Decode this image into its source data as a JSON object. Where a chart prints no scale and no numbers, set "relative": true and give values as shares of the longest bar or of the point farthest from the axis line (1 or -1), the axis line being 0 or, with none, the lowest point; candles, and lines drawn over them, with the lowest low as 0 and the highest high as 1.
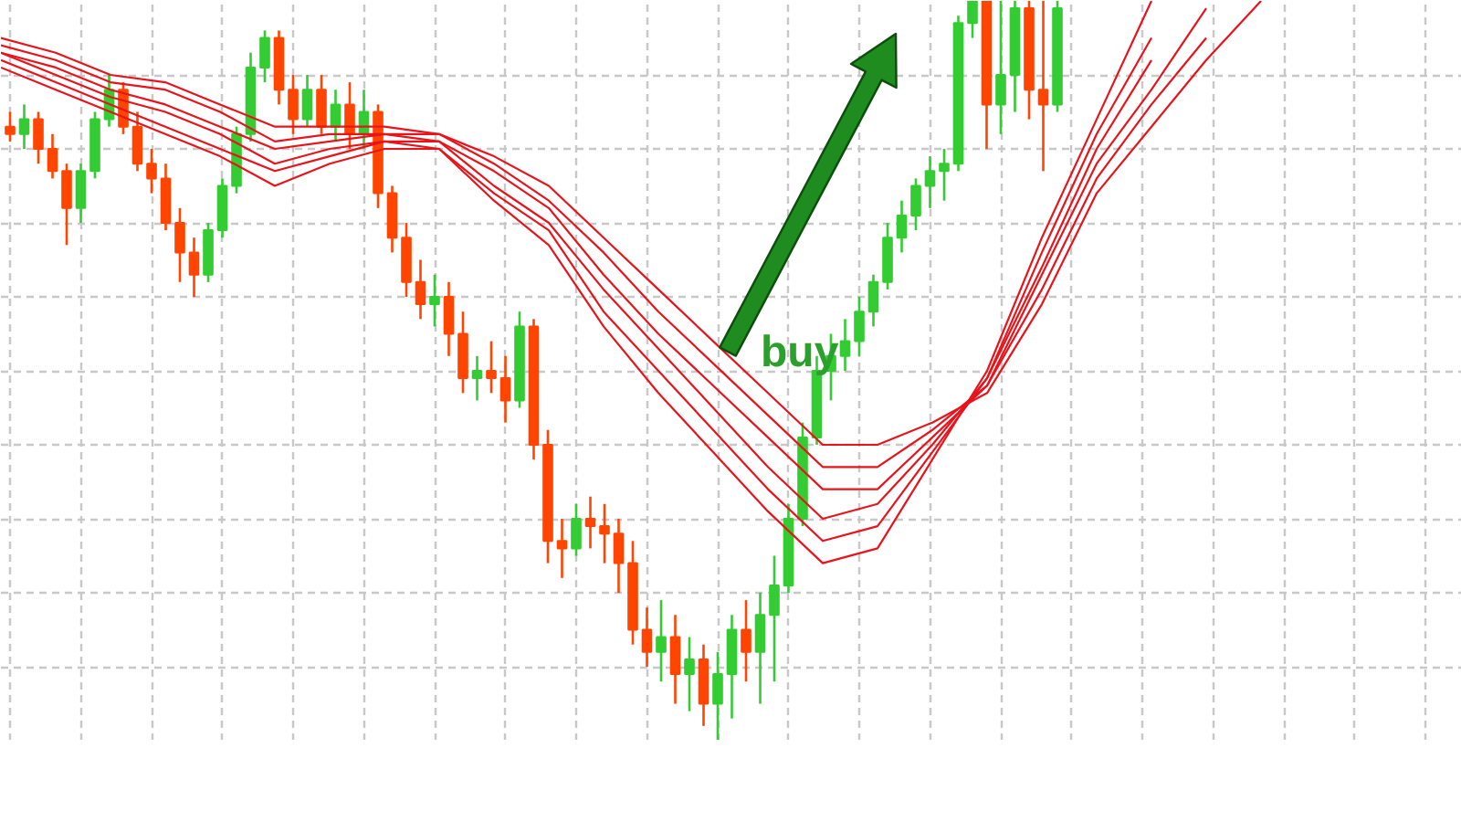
{
  "chart_data": [
    {
      "type": "candlestick",
      "relative": true,
      "tick_labels": false,
      "grid": true,
      "annotations": [
        "buy"
      ],
      "categories": [
        null,
        null,
        null,
        null,
        null,
        null,
        null,
        null,
        null,
        null,
        null,
        null,
        null,
        null,
        null,
        null,
        null,
        null,
        null,
        null,
        null,
        null,
        null,
        null,
        null,
        null,
        null,
        null,
        null,
        null,
        null,
        null,
        null,
        null,
        null,
        null,
        null,
        null,
        null,
        null,
        null,
        null,
        null,
        null,
        null,
        null,
        null,
        null,
        null,
        null,
        null,
        null,
        null,
        null,
        null,
        null,
        null,
        null,
        null,
        null,
        null,
        null,
        null,
        null,
        null,
        null,
        null,
        null,
        null,
        null,
        null,
        null,
        null,
        null,
        null
      ],
      "ohlc": [
        [
          0.83,
          0.85,
          0.81,
          0.82
        ],
        [
          0.82,
          0.86,
          0.8,
          0.84
        ],
        [
          0.84,
          0.85,
          0.78,
          0.8
        ],
        [
          0.8,
          0.82,
          0.76,
          0.77
        ],
        [
          0.77,
          0.78,
          0.67,
          0.72
        ],
        [
          0.72,
          0.78,
          0.7,
          0.77
        ],
        [
          0.77,
          0.85,
          0.76,
          0.84
        ],
        [
          0.84,
          0.9,
          0.83,
          0.88
        ],
        [
          0.88,
          0.89,
          0.82,
          0.83
        ],
        [
          0.83,
          0.85,
          0.77,
          0.78
        ],
        [
          0.78,
          0.8,
          0.74,
          0.76
        ],
        [
          0.76,
          0.78,
          0.69,
          0.7
        ],
        [
          0.7,
          0.72,
          0.62,
          0.66
        ],
        [
          0.66,
          0.68,
          0.6,
          0.63
        ],
        [
          0.63,
          0.7,
          0.62,
          0.69
        ],
        [
          0.69,
          0.76,
          0.68,
          0.75
        ],
        [
          0.75,
          0.83,
          0.74,
          0.82
        ],
        [
          0.82,
          0.93,
          0.81,
          0.91
        ],
        [
          0.91,
          0.96,
          0.89,
          0.95
        ],
        [
          0.95,
          0.96,
          0.86,
          0.88
        ],
        [
          0.88,
          0.9,
          0.82,
          0.84
        ],
        [
          0.84,
          0.9,
          0.83,
          0.88
        ],
        [
          0.88,
          0.9,
          0.82,
          0.83
        ],
        [
          0.83,
          0.88,
          0.81,
          0.86
        ],
        [
          0.86,
          0.89,
          0.8,
          0.82
        ],
        [
          0.82,
          0.88,
          0.8,
          0.85
        ],
        [
          0.85,
          0.86,
          0.72,
          0.74
        ],
        [
          0.74,
          0.75,
          0.66,
          0.68
        ],
        [
          0.68,
          0.7,
          0.6,
          0.62
        ],
        [
          0.62,
          0.65,
          0.57,
          0.59
        ],
        [
          0.59,
          0.63,
          0.56,
          0.6
        ],
        [
          0.6,
          0.62,
          0.52,
          0.55
        ],
        [
          0.55,
          0.58,
          0.47,
          0.49
        ],
        [
          0.49,
          0.52,
          0.46,
          0.5
        ],
        [
          0.5,
          0.54,
          0.47,
          0.49
        ],
        [
          0.49,
          0.52,
          0.43,
          0.46
        ],
        [
          0.46,
          0.58,
          0.45,
          0.56
        ],
        [
          0.56,
          0.57,
          0.38,
          0.4
        ],
        [
          0.4,
          0.42,
          0.24,
          0.27
        ],
        [
          0.27,
          0.3,
          0.22,
          0.26
        ],
        [
          0.26,
          0.32,
          0.25,
          0.3
        ],
        [
          0.3,
          0.33,
          0.26,
          0.29
        ],
        [
          0.29,
          0.32,
          0.24,
          0.28
        ],
        [
          0.28,
          0.3,
          0.2,
          0.24
        ],
        [
          0.24,
          0.27,
          0.13,
          0.15
        ],
        [
          0.15,
          0.18,
          0.1,
          0.12
        ],
        [
          0.12,
          0.19,
          0.08,
          0.14
        ],
        [
          0.14,
          0.17,
          0.05,
          0.09
        ],
        [
          0.09,
          0.14,
          0.04,
          0.11
        ],
        [
          0.11,
          0.13,
          0.02,
          0.05
        ],
        [
          0.05,
          0.12,
          0.0,
          0.09
        ],
        [
          0.09,
          0.17,
          0.03,
          0.15
        ],
        [
          0.15,
          0.19,
          0.08,
          0.12
        ],
        [
          0.12,
          0.2,
          0.05,
          0.17
        ],
        [
          0.17,
          0.25,
          0.08,
          0.21
        ],
        [
          0.21,
          0.32,
          0.2,
          0.3
        ],
        [
          0.3,
          0.43,
          0.29,
          0.41
        ],
        [
          0.41,
          0.52,
          0.4,
          0.5
        ],
        [
          0.5,
          0.55,
          0.46,
          0.52
        ],
        [
          0.52,
          0.57,
          0.5,
          0.54
        ],
        [
          0.54,
          0.6,
          0.52,
          0.58
        ],
        [
          0.58,
          0.63,
          0.56,
          0.62
        ],
        [
          0.62,
          0.7,
          0.61,
          0.68
        ],
        [
          0.68,
          0.73,
          0.66,
          0.71
        ],
        [
          0.71,
          0.76,
          0.69,
          0.75
        ],
        [
          0.75,
          0.79,
          0.72,
          0.77
        ],
        [
          0.77,
          0.8,
          0.73,
          0.78
        ],
        [
          0.78,
          0.98,
          0.77,
          0.97
        ],
        [
          0.97,
          1.0,
          0.95,
          1.0
        ],
        [
          1.0,
          1.0,
          0.8,
          0.86
        ],
        [
          0.86,
          1.0,
          0.82,
          0.9
        ],
        [
          0.9,
          1.0,
          0.85,
          0.99
        ],
        [
          0.99,
          1.0,
          0.84,
          0.88
        ],
        [
          0.88,
          1.0,
          0.77,
          0.86
        ],
        [
          0.86,
          1.0,
          0.85,
          0.99
        ]
      ],
      "colors": [
        "#ff4500",
        "#33cc33",
        "#ff4500",
        "#ff4500",
        "#ff4500",
        "#33cc33",
        "#33cc33",
        "#33cc33",
        "#ff4500",
        "#ff4500",
        "#ff4500",
        "#ff4500",
        "#ff4500",
        "#ff4500",
        "#33cc33",
        "#33cc33",
        "#33cc33",
        "#33cc33",
        "#33cc33",
        "#ff4500",
        "#ff4500",
        "#33cc33",
        "#ff4500",
        "#33cc33",
        "#ff4500",
        "#33cc33",
        "#ff4500",
        "#ff4500",
        "#ff4500",
        "#ff4500",
        "#33cc33",
        "#ff4500",
        "#ff4500",
        "#33cc33",
        "#ff4500",
        "#ff4500",
        "#33cc33",
        "#ff4500",
        "#ff4500",
        "#ff4500",
        "#33cc33",
        "#ff4500",
        "#ff4500",
        "#ff4500",
        "#ff4500",
        "#ff4500",
        "#33cc33",
        "#ff4500",
        "#33cc33",
        "#ff4500",
        "#33cc33",
        "#33cc33",
        "#ff4500",
        "#33cc33",
        "#33cc33",
        "#33cc33",
        "#33cc33",
        "#33cc33",
        "#33cc33",
        "#33cc33",
        "#33cc33",
        "#33cc33",
        "#33cc33",
        "#33cc33",
        "#33cc33",
        "#33cc33",
        "#33cc33",
        "#33cc33",
        "#33cc33",
        "#ff4500",
        "#33cc33",
        "#33cc33",
        "#ff4500",
        "#ff4500",
        "#33cc33"
      ]
    },
    {
      "type": "line",
      "relative": true,
      "tick_labels": false,
      "categories": [
        null,
        null,
        null,
        null,
        null,
        null,
        null,
        null,
        null,
        null,
        null,
        null,
        null,
        null,
        null,
        null,
        null,
        null,
        null,
        null,
        null,
        null,
        null,
        null
      ],
      "series": [
        {
          "color": "#e8141b",
          "values": [
            0.95,
            0.93,
            0.9,
            0.89,
            0.86,
            0.83,
            0.83,
            0.83,
            0.82,
            0.79,
            0.75,
            0.68,
            0.61,
            0.54,
            0.47,
            0.4,
            0.4,
            0.43,
            0.47,
            0.59,
            0.74,
            0.83,
            0.92,
            1.0
          ]
        },
        {
          "color": "#e8141b",
          "values": [
            0.94,
            0.92,
            0.89,
            0.88,
            0.85,
            0.81,
            0.82,
            0.82,
            0.82,
            0.78,
            0.73,
            0.66,
            0.58,
            0.51,
            0.44,
            0.37,
            0.37,
            0.42,
            0.48,
            0.61,
            0.76,
            0.86,
            0.95,
            null
          ]
        },
        {
          "color": "#e8141b",
          "values": [
            0.93,
            0.91,
            0.88,
            0.86,
            0.83,
            0.8,
            0.81,
            0.82,
            0.81,
            0.77,
            0.72,
            0.63,
            0.55,
            0.48,
            0.41,
            0.34,
            0.34,
            0.41,
            0.48,
            0.63,
            0.78,
            0.88,
            0.99,
            null
          ]
        },
        {
          "color": "#e8141b",
          "values": [
            0.93,
            0.9,
            0.87,
            0.85,
            0.82,
            0.78,
            0.8,
            0.81,
            0.81,
            0.75,
            0.7,
            0.61,
            0.53,
            0.45,
            0.37,
            0.3,
            0.32,
            0.4,
            0.49,
            0.64,
            0.8,
            0.92,
            null,
            null
          ]
        },
        {
          "color": "#e8141b",
          "values": [
            0.92,
            0.89,
            0.86,
            0.83,
            0.8,
            0.77,
            0.79,
            0.81,
            0.8,
            0.74,
            0.69,
            0.58,
            0.5,
            0.42,
            0.34,
            0.27,
            0.29,
            0.39,
            0.49,
            0.66,
            0.82,
            0.95,
            null,
            null
          ]
        },
        {
          "color": "#e8141b",
          "values": [
            0.91,
            0.88,
            0.85,
            0.82,
            0.79,
            0.75,
            0.78,
            0.8,
            0.8,
            0.73,
            0.67,
            0.56,
            0.47,
            0.39,
            0.31,
            0.24,
            0.26,
            0.38,
            0.5,
            0.68,
            0.84,
            1.0,
            null,
            null
          ]
        }
      ]
    }
  ]
}
